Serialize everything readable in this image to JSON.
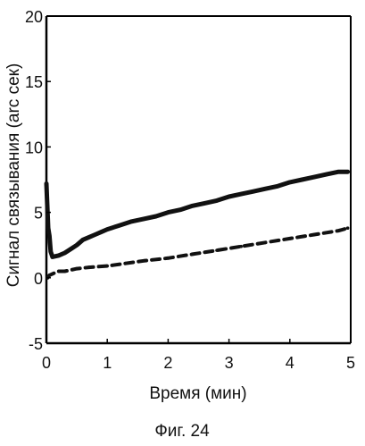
{
  "chart_data": {
    "type": "line",
    "xlabel": "Время (мин)",
    "ylabel": "Сигнал связывания (arc сек)",
    "caption": "Фиг. 24",
    "xlim": [
      0,
      5
    ],
    "ylim": [
      -5,
      20
    ],
    "xticks": [
      "0",
      "1",
      "2",
      "3",
      "4",
      "5"
    ],
    "yticks": [
      "-5",
      "0",
      "5",
      "10",
      "15",
      "20"
    ],
    "grid": false,
    "legend": "none",
    "colors": {
      "line": "#111111",
      "axis": "#000000",
      "background": "#ffffff"
    },
    "series": [
      {
        "style": "solid",
        "x": [
          0,
          0.01,
          0.03,
          0.05,
          0.07,
          0.1,
          0.2,
          0.3,
          0.4,
          0.5,
          0.6,
          0.7,
          0.8,
          0.9,
          1.0,
          1.2,
          1.4,
          1.6,
          1.8,
          2.0,
          2.2,
          2.4,
          2.6,
          2.8,
          3.0,
          3.2,
          3.4,
          3.6,
          3.8,
          4.0,
          4.2,
          4.4,
          4.6,
          4.8,
          4.95
        ],
        "y": [
          7.2,
          6.0,
          3.8,
          3.2,
          2.0,
          1.6,
          1.7,
          1.9,
          2.2,
          2.5,
          2.9,
          3.1,
          3.3,
          3.5,
          3.7,
          4.0,
          4.3,
          4.5,
          4.7,
          5.0,
          5.2,
          5.5,
          5.7,
          5.9,
          6.2,
          6.4,
          6.6,
          6.8,
          7.0,
          7.3,
          7.5,
          7.7,
          7.9,
          8.1,
          8.1
        ]
      },
      {
        "style": "dashed",
        "x": [
          0.02,
          0.05,
          0.1,
          0.2,
          0.3,
          0.5,
          0.7,
          1.0,
          1.3,
          1.6,
          2.0,
          2.4,
          2.8,
          3.2,
          3.6,
          4.0,
          4.4,
          4.8,
          4.95
        ],
        "y": [
          0.0,
          0.2,
          0.3,
          0.5,
          0.5,
          0.7,
          0.8,
          0.9,
          1.1,
          1.3,
          1.5,
          1.8,
          2.1,
          2.4,
          2.7,
          3.0,
          3.3,
          3.6,
          3.8
        ]
      }
    ]
  }
}
